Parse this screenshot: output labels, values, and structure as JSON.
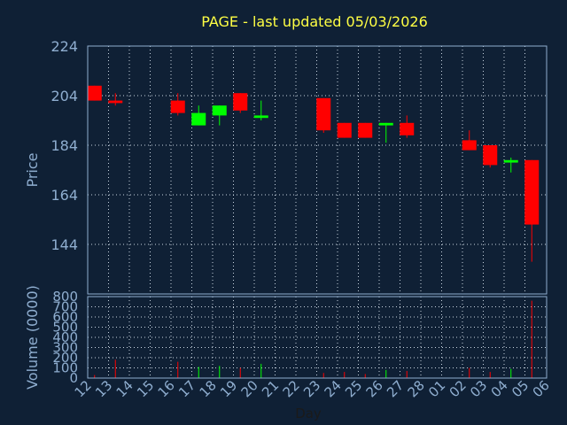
{
  "chart_data": {
    "type": "candlestick",
    "title": "PAGE - last updated 05/03/2026",
    "ylabel_price": "Price",
    "ylabel_volume": "Volume (0000)",
    "xlabel": "Day",
    "price_ylim": [
      124,
      224
    ],
    "price_yticks": [
      144,
      164,
      184,
      204,
      224
    ],
    "volume_ylim": [
      0,
      800
    ],
    "volume_yticks": [
      0,
      100,
      200,
      300,
      400,
      500,
      600,
      700,
      800
    ],
    "x_labels": [
      "12",
      "13",
      "14",
      "15",
      "16",
      "17",
      "18",
      "19",
      "20",
      "21",
      "22",
      "23",
      "24",
      "25",
      "26",
      "27",
      "28",
      "01",
      "02",
      "03",
      "04",
      "05",
      "06"
    ],
    "colors": {
      "up": "#00ff00",
      "down": "#ff0000"
    },
    "candles": [
      {
        "x": "12",
        "open": 208,
        "high": 208,
        "low": 202,
        "close": 202,
        "volume": 30
      },
      {
        "x": "13",
        "open": 202,
        "high": 205,
        "low": 200,
        "close": 201,
        "volume": 180
      },
      {
        "x": "16",
        "open": 202,
        "high": 205,
        "low": 196,
        "close": 197,
        "volume": 160
      },
      {
        "x": "17",
        "open": 192,
        "high": 200,
        "low": 192,
        "close": 197,
        "volume": 110
      },
      {
        "x": "18",
        "open": 196,
        "high": 200,
        "low": 192,
        "close": 200,
        "volume": 120
      },
      {
        "x": "19",
        "open": 205,
        "high": 205,
        "low": 197,
        "close": 198,
        "volume": 100
      },
      {
        "x": "20",
        "open": 195,
        "high": 202,
        "low": 194,
        "close": 196,
        "volume": 140
      },
      {
        "x": "23",
        "open": 203,
        "high": 203,
        "low": 189,
        "close": 190,
        "volume": 50
      },
      {
        "x": "24",
        "open": 193,
        "high": 193,
        "low": 187,
        "close": 187,
        "volume": 60
      },
      {
        "x": "25",
        "open": 193,
        "high": 193,
        "low": 187,
        "close": 187,
        "volume": 40
      },
      {
        "x": "26",
        "open": 192,
        "high": 193,
        "low": 185,
        "close": 193,
        "volume": 80
      },
      {
        "x": "27",
        "open": 193,
        "high": 196,
        "low": 187,
        "close": 188,
        "volume": 70
      },
      {
        "x": "02",
        "open": 186,
        "high": 190,
        "low": 182,
        "close": 182,
        "volume": 100
      },
      {
        "x": "03",
        "open": 184,
        "high": 184,
        "low": 175,
        "close": 176,
        "volume": 60
      },
      {
        "x": "04",
        "open": 177,
        "high": 179,
        "low": 173,
        "close": 178,
        "volume": 90
      },
      {
        "x": "05",
        "open": 178,
        "high": 178,
        "low": 137,
        "close": 152,
        "volume": 760
      }
    ]
  }
}
